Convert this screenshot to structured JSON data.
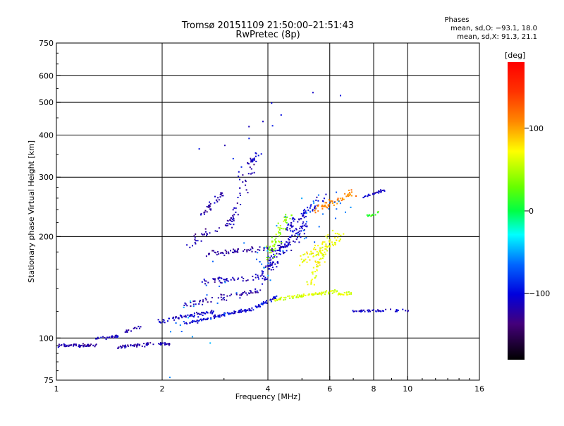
{
  "chart_data": {
    "type": "scatter",
    "title": "Tromsø 20151109 21:50:00–21:51:43",
    "subtitle": "RwPretec (8p)",
    "xlabel": "Frequency [MHz]",
    "ylabel": "Stationary phase Virtual Height [km]",
    "x_scale": "log2",
    "y_scale": "log",
    "xlim": [
      1,
      16
    ],
    "ylim": [
      75,
      750
    ],
    "x_ticks": [
      1,
      2,
      4,
      6,
      8,
      10,
      16
    ],
    "x_tick_labels": [
      "1",
      "2",
      "4",
      "6",
      "8",
      "10",
      "16"
    ],
    "y_ticks": [
      75,
      100,
      200,
      300,
      400,
      500,
      600,
      750
    ],
    "y_tick_labels": [
      "75",
      "100",
      "200",
      "300",
      "400",
      "500",
      "600",
      "750"
    ],
    "grid": true,
    "legend": {
      "title": "Phases",
      "line1": "mean, sd,O: −93.1, 18.0",
      "line2": "mean, sd,X:  91.3, 21.1",
      "placement": "top-right"
    },
    "colorbar": {
      "unit_label": "[deg]",
      "range": [
        -180,
        180
      ],
      "ticks": [
        100,
        0,
        -100
      ],
      "tick_labels": [
        "100",
        "0",
        "−100"
      ]
    },
    "series": [
      {
        "traces": [
          {
            "x": [
              1.0,
              1.3
            ],
            "h": [
              95,
              95
            ],
            "phase": -120,
            "n": 60,
            "jx": 0.01,
            "jh": 1.5
          },
          {
            "x": [
              1.3,
              1.5
            ],
            "h": [
              100,
              101
            ],
            "phase": -110,
            "n": 25,
            "jx": 0.01,
            "jh": 1.5
          },
          {
            "x": [
              1.5,
              1.85
            ],
            "h": [
              94,
              96
            ],
            "phase": -120,
            "n": 45,
            "jx": 0.01,
            "jh": 1.5
          },
          {
            "x": [
              1.9,
              2.1
            ],
            "h": [
              96,
              96
            ],
            "phase": -115,
            "n": 20,
            "jx": 0.01,
            "jh": 1.5
          },
          {
            "x": [
              1.55,
              1.75
            ],
            "h": [
              104,
              108
            ],
            "phase": -120,
            "n": 15,
            "jx": 0.01,
            "jh": 1.5
          },
          {
            "x": [
              1.95,
              2.8
            ],
            "h": [
              112,
              120
            ],
            "phase": -110,
            "n": 70,
            "jx": 0.015,
            "jh": 2.5
          },
          {
            "x": [
              2.3,
              3.6
            ],
            "h": [
              110,
              122
            ],
            "phase": -105,
            "n": 90,
            "jx": 0.02,
            "jh": 2.0
          },
          {
            "x": [
              3.6,
              4.2
            ],
            "h": [
              122,
              132
            ],
            "phase": -100,
            "n": 35,
            "jx": 0.02,
            "jh": 2.0
          },
          {
            "x": [
              4.2,
              6.3
            ],
            "h": [
              130,
              138
            ],
            "phase": 60,
            "n": 90,
            "jx": 0.03,
            "jh": 2.0
          },
          {
            "x": [
              6.3,
              6.9
            ],
            "h": [
              134,
              136
            ],
            "phase": 65,
            "n": 20,
            "jx": 0.02,
            "jh": 2.0
          },
          {
            "x": [
              2.3,
              3.8
            ],
            "h": [
              125,
              138
            ],
            "phase": -120,
            "n": 60,
            "jx": 0.02,
            "jh": 4.0
          },
          {
            "x": [
              2.6,
              4.0
            ],
            "h": [
              148,
              152
            ],
            "phase": -115,
            "n": 50,
            "jx": 0.02,
            "jh": 5.0
          },
          {
            "x": [
              2.7,
              4.5
            ],
            "h": [
              178,
              186
            ],
            "phase": -125,
            "n": 70,
            "jx": 0.02,
            "jh": 5.0
          },
          {
            "x": [
              3.8,
              5.2
            ],
            "h": [
              150,
              220
            ],
            "phase": -110,
            "n": 120,
            "jx": 0.06,
            "jh": 15.0
          },
          {
            "x": [
              4.0,
              4.6
            ],
            "h": [
              175,
              230
            ],
            "phase": 40,
            "n": 60,
            "jx": 0.05,
            "jh": 12.0
          },
          {
            "x": [
              5.0,
              6.5
            ],
            "h": [
              170,
              200
            ],
            "phase": 70,
            "n": 70,
            "jx": 0.05,
            "jh": 12.0
          },
          {
            "x": [
              5.3,
              6.0
            ],
            "h": [
              145,
              200
            ],
            "phase": 70,
            "n": 60,
            "jx": 0.04,
            "jh": 12.0
          },
          {
            "x": [
              4.5,
              5.8
            ],
            "h": [
              210,
              260
            ],
            "phase": -105,
            "n": 60,
            "jx": 0.05,
            "jh": 15.0
          },
          {
            "x": [
              5.5,
              7.0
            ],
            "h": [
              240,
              270
            ],
            "phase": 110,
            "n": 60,
            "jx": 0.04,
            "jh": 10.0
          },
          {
            "x": [
              7.4,
              8.6
            ],
            "h": [
              262,
              274
            ],
            "phase": -110,
            "n": 25,
            "jx": 0.02,
            "jh": 3.0
          },
          {
            "x": [
              7.5,
              8.3
            ],
            "h": [
              228,
              236
            ],
            "phase": 20,
            "n": 15,
            "jx": 0.02,
            "jh": 4.0
          },
          {
            "x": [
              7.0,
              10.5
            ],
            "h": [
              120,
              121
            ],
            "phase": -110,
            "n": 40,
            "jx": 0.015,
            "jh": 1.5
          },
          {
            "x": [
              2.6,
              3.0
            ],
            "h": [
              230,
              270
            ],
            "phase": -120,
            "n": 35,
            "jx": 0.03,
            "jh": 12.0
          },
          {
            "x": [
              2.4,
              3.2
            ],
            "h": [
              190,
              225
            ],
            "phase": -120,
            "n": 40,
            "jx": 0.03,
            "jh": 10.0
          },
          {
            "x": [
              3.1,
              3.7
            ],
            "h": [
              210,
              340
            ],
            "phase": -115,
            "n": 40,
            "jx": 0.04,
            "jh": 20.0
          },
          {
            "x": [
              3.3,
              3.8
            ],
            "h": [
              300,
              360
            ],
            "phase": -110,
            "n": 20,
            "jx": 0.03,
            "jh": 15.0
          },
          {
            "x": [
              2.0,
              6.5
            ],
            "h": [
              80,
              260
            ],
            "phase": -60,
            "n": 60,
            "jx": 0.2,
            "jh": 40.0
          },
          {
            "x": [
              2.6,
              6.0
            ],
            "h": [
              300,
              560
            ],
            "phase": -100,
            "n": 12,
            "jx": 0.2,
            "jh": 60.0
          }
        ]
      }
    ]
  }
}
